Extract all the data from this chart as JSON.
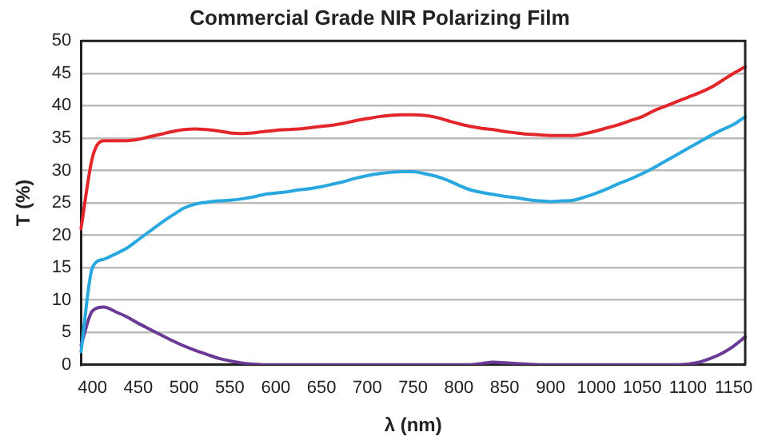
{
  "chart_data": {
    "type": "line",
    "title": "Commercial Grade NIR Polarizing Film",
    "xlabel": "λ (nm)",
    "ylabel": "T (%)",
    "categories": [
      null,
      "400",
      null,
      null,
      null,
      "450",
      null,
      null,
      null,
      "500",
      null,
      null,
      null,
      "550",
      null,
      null,
      null,
      "600",
      null,
      null,
      null,
      "650",
      null,
      null,
      null,
      "700",
      null,
      null,
      null,
      "750",
      null,
      null,
      null,
      "800",
      null,
      null,
      null,
      "850",
      null,
      null,
      null,
      "900",
      null,
      null,
      null,
      "1000",
      null,
      null,
      null,
      "1050",
      null,
      null,
      null,
      "1100",
      null,
      null,
      null,
      "1150",
      null
    ],
    "ylim": [
      0,
      50
    ],
    "yticks": [
      0,
      5,
      10,
      15,
      20,
      25,
      30,
      35,
      40,
      45,
      50
    ],
    "grid": "y",
    "legend": false,
    "marker": "none",
    "line_style": "solid",
    "series": [
      {
        "color": "#e3262a",
        "values": [
          21,
          32,
          34.6,
          34.6,
          34.6,
          34.8,
          35.2,
          35.6,
          36,
          36.3,
          36.4,
          36.3,
          36.1,
          35.8,
          35.7,
          35.8,
          36,
          36.2,
          36.3,
          36.4,
          36.6,
          36.8,
          37,
          37.3,
          37.7,
          38,
          38.3,
          38.5,
          38.6,
          38.6,
          38.5,
          38.2,
          37.7,
          37.2,
          36.8,
          36.5,
          36.3,
          36,
          35.8,
          35.6,
          35.5,
          35.4,
          35.4,
          35.4,
          35.7,
          36.1,
          36.6,
          37.1,
          37.7,
          38.3,
          39.2,
          39.9,
          40.6,
          41.3,
          42,
          42.8,
          43.9,
          45,
          46
        ]
      },
      {
        "color": "#29a8e0",
        "values": [
          2,
          15,
          16.3,
          17.1,
          18,
          19.3,
          20.6,
          21.9,
          23.1,
          24.2,
          24.8,
          25.1,
          25.3,
          25.4,
          25.6,
          25.9,
          26.3,
          26.5,
          26.7,
          27,
          27.2,
          27.5,
          27.9,
          28.3,
          28.8,
          29.2,
          29.5,
          29.7,
          29.8,
          29.8,
          29.5,
          29.1,
          28.5,
          27.7,
          27,
          26.6,
          26.3,
          26,
          25.8,
          25.5,
          25.3,
          25.2,
          25.3,
          25.4,
          25.9,
          26.5,
          27.2,
          28,
          28.7,
          29.5,
          30.4,
          31.4,
          32.4,
          33.4,
          34.4,
          35.4,
          36.3,
          37.1,
          38.3
        ]
      },
      {
        "color": "#6a3a96",
        "values": [
          3,
          8.3,
          8.9,
          8.2,
          7.4,
          6.4,
          5.5,
          4.6,
          3.7,
          2.9,
          2.2,
          1.6,
          1,
          0.6,
          0.3,
          0.1,
          0,
          0,
          0,
          0,
          0,
          0,
          0,
          0,
          0,
          0,
          0,
          0,
          0,
          0,
          0,
          0,
          0,
          0,
          0,
          0.2,
          0.4,
          0.3,
          0.2,
          0.1,
          0,
          0,
          0,
          0,
          0,
          0,
          0,
          0,
          0,
          0,
          0,
          0,
          0,
          0.1,
          0.4,
          1,
          1.8,
          2.9,
          4.3
        ]
      }
    ]
  }
}
